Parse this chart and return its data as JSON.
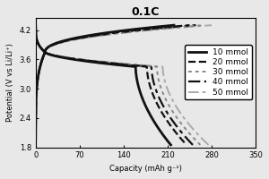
{
  "title": "0.1C",
  "xlabel": "Capacity (mAh g⁻¹)",
  "ylabel": "Potential (V vs Li/Li⁺)",
  "xlim": [
    0,
    350
  ],
  "ylim": [
    1.8,
    4.45
  ],
  "xticks": [
    0,
    70,
    140,
    210,
    280,
    350
  ],
  "yticks": [
    1.8,
    2.4,
    3.0,
    3.6,
    4.2
  ],
  "series": [
    {
      "label": "10 mmol",
      "color": "#111111",
      "lw": 2.0,
      "discharge_end": 215,
      "charge_end": 220
    },
    {
      "label": "20 mmol",
      "color": "#111111",
      "lw": 1.6,
      "discharge_end": 240,
      "charge_end": 245
    },
    {
      "label": "30 mmol",
      "color": "#888888",
      "lw": 1.4,
      "discharge_end": 262,
      "charge_end": 267
    },
    {
      "label": "40 mmol",
      "color": "#111111",
      "lw": 1.6,
      "discharge_end": 250,
      "charge_end": 255
    },
    {
      "label": "50 mmol",
      "color": "#aaaaaa",
      "lw": 1.4,
      "discharge_end": 275,
      "charge_end": 280
    }
  ],
  "linestyles": [
    "solid",
    "dashed",
    [
      0,
      2,
      2,
      2
    ],
    [
      0,
      6,
      2,
      2,
      2
    ],
    [
      0,
      6,
      2,
      2,
      2
    ]
  ],
  "ls_gray": [
    [
      0,
      2,
      2,
      2
    ],
    [
      0,
      6,
      2,
      2,
      2
    ]
  ],
  "background_color": "#f0f0f0",
  "title_fontsize": 9,
  "label_fontsize": 6,
  "tick_fontsize": 6,
  "legend_fontsize": 6.5
}
